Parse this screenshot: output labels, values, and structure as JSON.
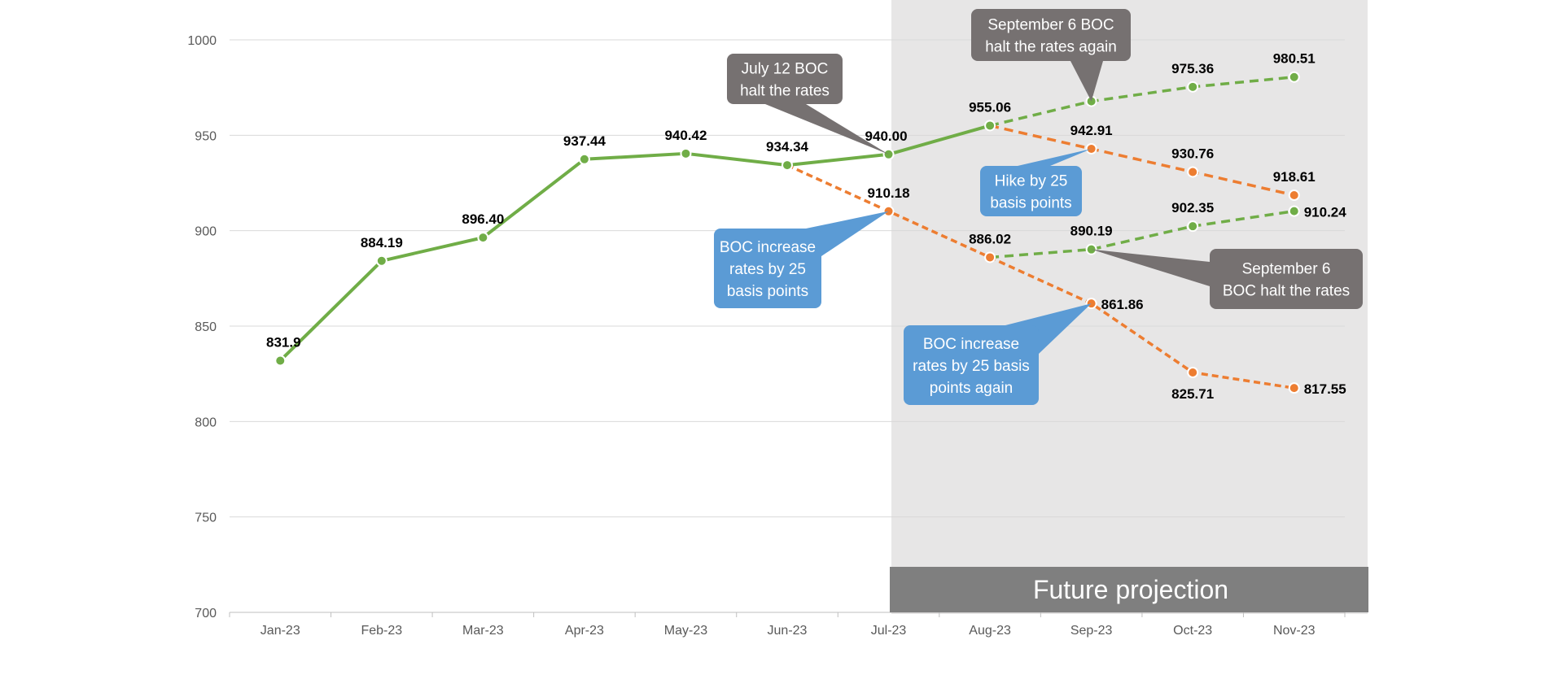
{
  "chart_data": {
    "type": "line",
    "title": "",
    "xlabel": "",
    "ylabel": "",
    "categories": [
      "Jan-23",
      "Feb-23",
      "Mar-23",
      "Apr-23",
      "May-23",
      "Jun-23",
      "Jul-23",
      "Aug-23",
      "Sep-23",
      "Oct-23",
      "Nov-23"
    ],
    "ylim": [
      700,
      1000
    ],
    "yticks": [
      "700",
      "750",
      "800",
      "850",
      "900",
      "950",
      "1000"
    ],
    "grid": true,
    "legend": "none",
    "projection_banner": "Future projection",
    "colors": {
      "green": "#70AD47",
      "orange": "#ED7D31",
      "gray_callout": "#767171",
      "blue_callout": "#5B9BD5",
      "shade": "#E7E6E6",
      "banner": "#7F7F7F"
    },
    "series": [
      {
        "id": "actual",
        "color": "#70AD47",
        "style": "solid",
        "points": [
          {
            "x": "Jan-23",
            "y": 831.9,
            "label": "831.9"
          },
          {
            "x": "Feb-23",
            "y": 884.19,
            "label": "884.19"
          },
          {
            "x": "Mar-23",
            "y": 896.4,
            "label": "896.40"
          },
          {
            "x": "Apr-23",
            "y": 937.44,
            "label": "937.44"
          },
          {
            "x": "May-23",
            "y": 940.42,
            "label": "940.42"
          },
          {
            "x": "Jun-23",
            "y": 934.34,
            "label": "934.34"
          },
          {
            "x": "Jul-23",
            "y": 940.0,
            "label": "940.00"
          },
          {
            "x": "Aug-23",
            "y": 955.06,
            "label": "955.06"
          }
        ]
      },
      {
        "id": "halt-again-projection",
        "color": "#70AD47",
        "style": "dashed",
        "points": [
          {
            "x": "Aug-23",
            "y": 955.06,
            "label": ""
          },
          {
            "x": "Sep-23",
            "y": 967.8,
            "label": ""
          },
          {
            "x": "Oct-23",
            "y": 975.36,
            "label": "975.36"
          },
          {
            "x": "Nov-23",
            "y": 980.51,
            "label": "980.51"
          }
        ]
      },
      {
        "id": "hike-from-aug",
        "color": "#ED7D31",
        "style": "dashed",
        "points": [
          {
            "x": "Aug-23",
            "y": 955.06,
            "label": ""
          },
          {
            "x": "Sep-23",
            "y": 942.91,
            "label": "942.91"
          },
          {
            "x": "Oct-23",
            "y": 930.76,
            "label": "930.76"
          },
          {
            "x": "Nov-23",
            "y": 918.61,
            "label": "918.61"
          }
        ]
      },
      {
        "id": "hike-july",
        "color": "#ED7D31",
        "style": "dashed",
        "points": [
          {
            "x": "Jun-23",
            "y": 934.34,
            "label": ""
          },
          {
            "x": "Jul-23",
            "y": 910.18,
            "label": "910.18"
          },
          {
            "x": "Aug-23",
            "y": 886.02,
            "label": "886.02"
          },
          {
            "x": "Sep-23",
            "y": 861.86,
            "label": "861.86"
          },
          {
            "x": "Oct-23",
            "y": 825.71,
            "label": "825.71"
          },
          {
            "x": "Nov-23",
            "y": 817.55,
            "label": "817.55"
          }
        ]
      },
      {
        "id": "halt-after-hike",
        "color": "#70AD47",
        "style": "dashed",
        "points": [
          {
            "x": "Aug-23",
            "y": 886.02,
            "label": ""
          },
          {
            "x": "Sep-23",
            "y": 890.19,
            "label": "890.19"
          },
          {
            "x": "Oct-23",
            "y": 902.35,
            "label": "902.35"
          },
          {
            "x": "Nov-23",
            "y": 910.24,
            "label": "910.24"
          }
        ]
      }
    ],
    "annotations": [
      {
        "id": "july-halt",
        "color": "gray",
        "lines": [
          "July 12 BOC",
          "halt the rates"
        ],
        "points_to": {
          "x": "Jul-23",
          "y": 940.0
        }
      },
      {
        "id": "sept-halt-again",
        "color": "gray",
        "lines": [
          "September 6 BOC",
          "halt the rates again"
        ],
        "points_to": {
          "x": "Sep-23",
          "y": 967.8
        }
      },
      {
        "id": "hike-25",
        "color": "blue",
        "lines": [
          "Hike by 25",
          "basis points"
        ],
        "points_to": {
          "x": "Sep-23",
          "y": 942.91
        }
      },
      {
        "id": "boc-increase-july",
        "color": "blue",
        "lines": [
          "BOC increase",
          "rates by 25",
          "basis points"
        ],
        "points_to": {
          "x": "Jul-23",
          "y": 910.18
        }
      },
      {
        "id": "sept-halt",
        "color": "gray",
        "lines": [
          "September 6",
          "BOC halt the rates"
        ],
        "points_to": {
          "x": "Sep-23",
          "y": 890.19
        }
      },
      {
        "id": "boc-increase-again",
        "color": "blue",
        "lines": [
          "BOC increase",
          "rates by 25 basis",
          "points again"
        ],
        "points_to": {
          "x": "Sep-23",
          "y": 861.86
        }
      }
    ]
  }
}
